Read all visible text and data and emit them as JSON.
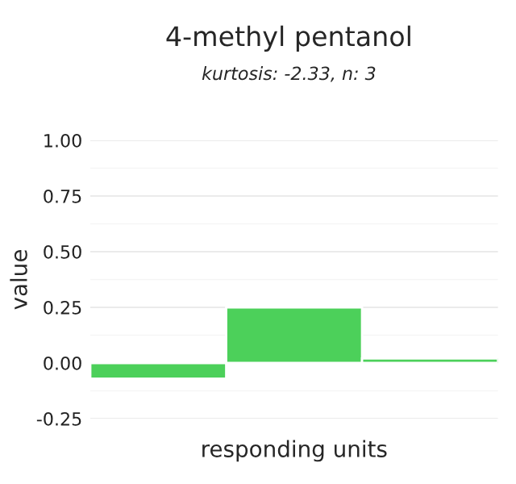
{
  "chart_data": {
    "type": "bar",
    "title": "4-methyl pentanol",
    "subtitle": "kurtosis: -2.33, n: 3",
    "xlabel": "responding units",
    "ylabel": "value",
    "categories": [
      null,
      null,
      null
    ],
    "values": [
      -0.07,
      0.25,
      0.02
    ],
    "color": "#4cd05a",
    "ylim": [
      -0.25,
      1.0
    ],
    "yticks": [
      {
        "value": -0.25,
        "label": "-0.25"
      },
      {
        "value": 0,
        "label": "0.00"
      },
      {
        "value": 0.25,
        "label": "0.25"
      },
      {
        "value": 0.5,
        "label": "0.50"
      },
      {
        "value": 0.75,
        "label": "0.75"
      },
      {
        "value": 1,
        "label": "1.00"
      }
    ],
    "grid": "y"
  }
}
